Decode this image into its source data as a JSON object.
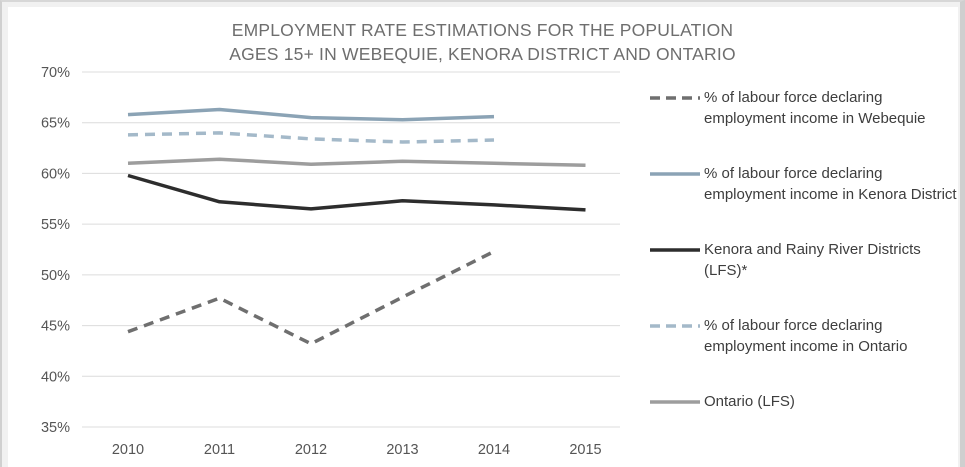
{
  "chart_data": {
    "type": "line",
    "title": [
      "EMPLOYMENT RATE ESTIMATIONS FOR THE POPULATION",
      "AGES 15+ IN WEBEQUIE, KENORA DISTRICT AND ONTARIO"
    ],
    "x": [
      "2010",
      "2011",
      "2012",
      "2013",
      "2014",
      "2015"
    ],
    "ylim": [
      35,
      70
    ],
    "yticks": [
      "35%",
      "40%",
      "45%",
      "50%",
      "55%",
      "60%",
      "65%",
      "70%"
    ],
    "grid": true,
    "legend_position": "right",
    "series": [
      {
        "name": "% of labour force declaring employment income in Webequie",
        "color": "#6f6f6f",
        "dash": true,
        "values": [
          44.4,
          47.7,
          43.2,
          47.8,
          52.3,
          null
        ]
      },
      {
        "name": "% of labour force declaring employment income in Kenora District",
        "color": "#8ba3b5",
        "dash": false,
        "values": [
          65.8,
          66.3,
          65.5,
          65.3,
          65.6,
          null
        ]
      },
      {
        "name": "Kenora and Rainy River Districts (LFS)*",
        "color": "#2d2d2d",
        "dash": false,
        "values": [
          59.8,
          57.2,
          56.5,
          57.3,
          56.9,
          56.4
        ]
      },
      {
        "name": "% of labour force declaring employment income in Ontario",
        "color": "#a4b9c9",
        "dash": true,
        "values": [
          63.8,
          64.0,
          63.4,
          63.1,
          63.3,
          null
        ]
      },
      {
        "name": "Ontario (LFS)",
        "color": "#9d9d9d",
        "dash": false,
        "values": [
          61.0,
          61.4,
          60.9,
          61.2,
          61.0,
          60.8
        ]
      }
    ]
  }
}
